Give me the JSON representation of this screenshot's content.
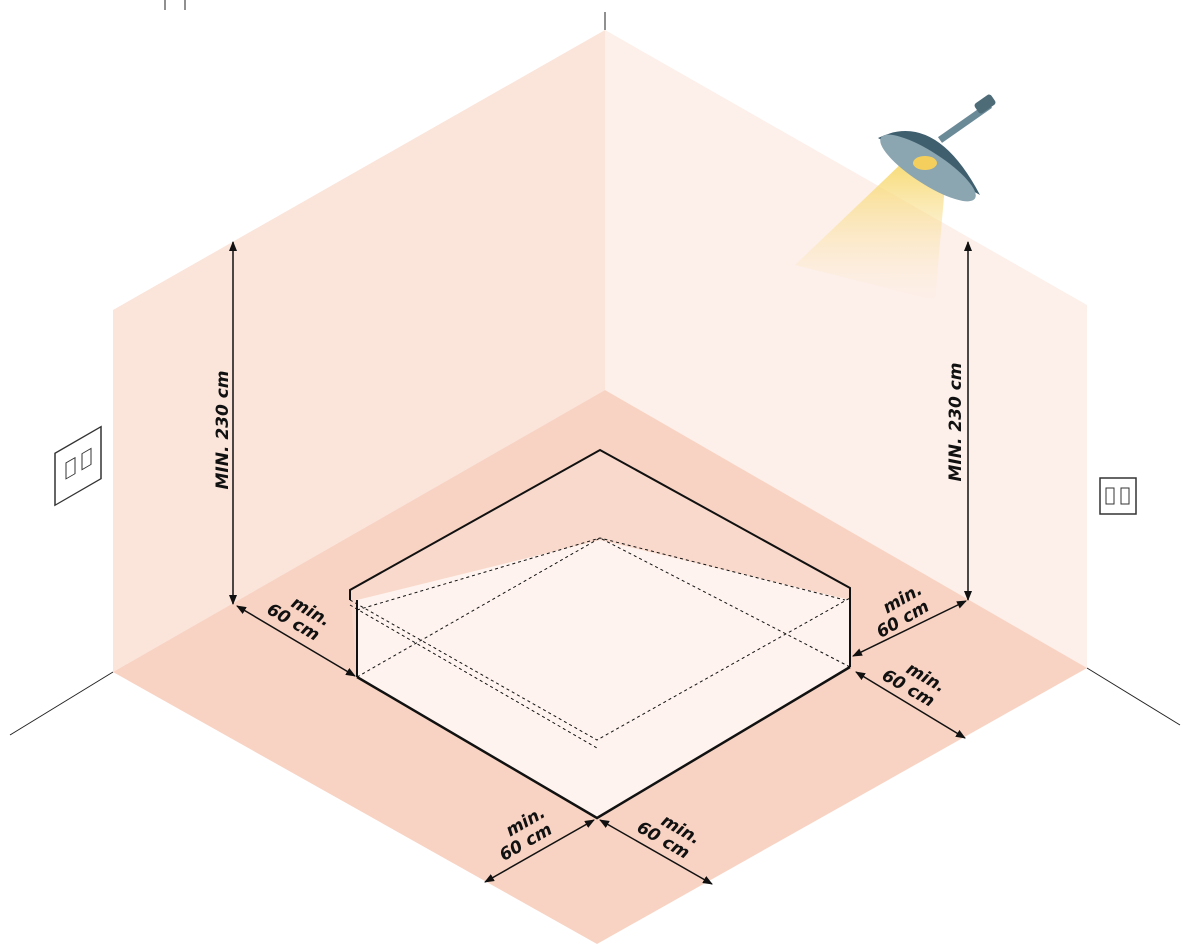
{
  "heights": [
    "MIN. 230 cm",
    "MIN. 230 cm"
  ],
  "clearances": [
    {
      "line1": "min.",
      "line2": "60 cm"
    },
    {
      "line1": "min.",
      "line2": "60 cm"
    },
    {
      "line1": "min.",
      "line2": "60 cm"
    },
    {
      "line1": "min.",
      "line2": "60 cm"
    },
    {
      "line1": "min.",
      "line2": "60 cm"
    }
  ]
}
